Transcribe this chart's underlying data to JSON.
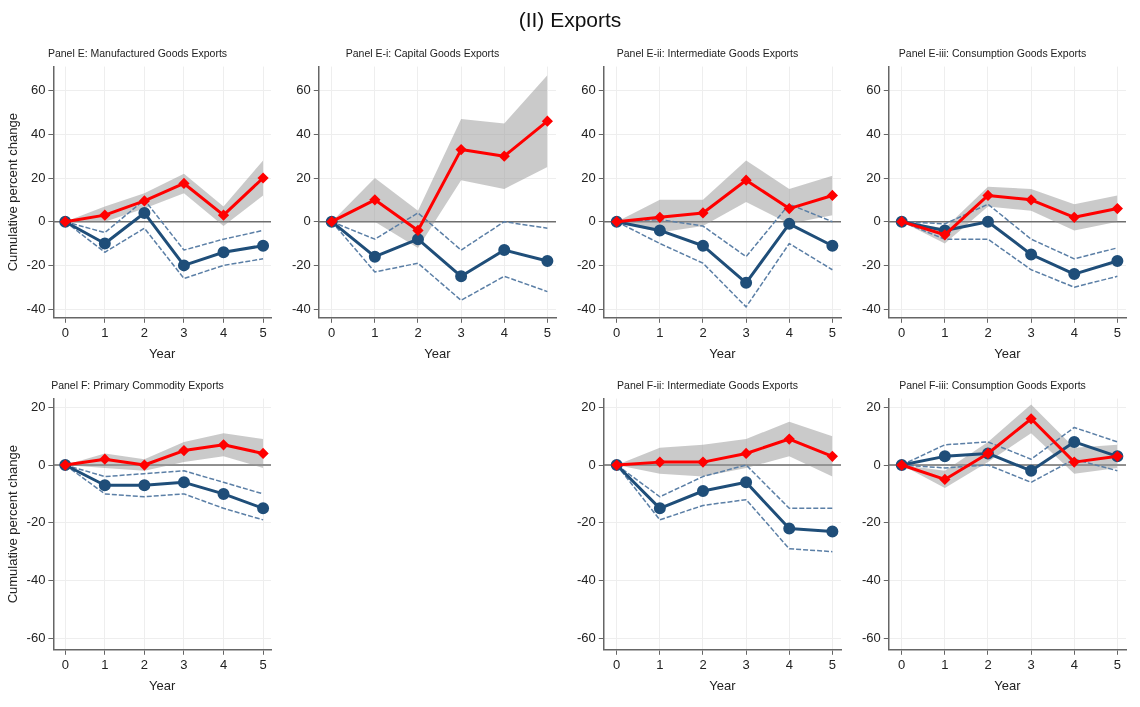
{
  "chart_data": [
    {
      "type": "line",
      "title": "Panel E: Manufactured Goods Exports",
      "annotations": [
        "(II) Exports"
      ],
      "xlabel": "Year",
      "ylabel": "Cumulative percent change",
      "x": [
        0,
        1,
        2,
        3,
        4,
        5
      ],
      "xlim": [
        -0.3,
        5.2
      ],
      "xticks": [
        0,
        1,
        2,
        3,
        4,
        5
      ],
      "ylim": [
        -44,
        71
      ],
      "yticks": [
        -40,
        -20,
        0,
        20,
        40,
        60
      ],
      "grid": true,
      "ref_lines": [
        {
          "axis": "y",
          "value": 0,
          "color": "#6e6e6e"
        }
      ],
      "series": [
        {
          "color": "#ff0000",
          "marker": "diamond",
          "line_style": "solid",
          "values": [
            0,
            3,
            9.5,
            17.5,
            3,
            20
          ],
          "lower": [
            0,
            0,
            6,
            13,
            -2,
            12
          ],
          "upper": [
            0,
            7,
            13,
            22,
            7,
            28
          ]
        },
        {
          "color": "#1f4e79",
          "marker": "circle",
          "line_style": "solid",
          "values": [
            0,
            -10,
            4,
            -20,
            -14,
            -11
          ]
        },
        {
          "color": "#5b7fa6",
          "marker": "none",
          "line_style": "dashed",
          "values": [
            0,
            -5,
            10,
            -13,
            -8,
            -4
          ]
        },
        {
          "color": "#5b7fa6",
          "marker": "none",
          "line_style": "dashed",
          "values": [
            0,
            -14,
            -3,
            -26,
            -20,
            -17
          ]
        }
      ]
    },
    {
      "type": "line",
      "title": "Panel E-i: Capital Goods Exports",
      "xlabel": "Year",
      "x": [
        0,
        1,
        2,
        3,
        4,
        5
      ],
      "xlim": [
        -0.3,
        5.2
      ],
      "xticks": [
        0,
        1,
        2,
        3,
        4,
        5
      ],
      "ylim": [
        -44,
        71
      ],
      "yticks": [
        -40,
        -20,
        0,
        20,
        40,
        60
      ],
      "grid": true,
      "ref_lines": [
        {
          "axis": "y",
          "value": 0,
          "color": "#6e6e6e"
        }
      ],
      "series": [
        {
          "color": "#ff0000",
          "marker": "diamond",
          "line_style": "solid",
          "values": [
            0,
            10,
            -4,
            33,
            30,
            46
          ],
          "lower": [
            0,
            0,
            -12,
            19,
            15,
            25
          ],
          "upper": [
            0,
            20,
            5,
            47,
            45,
            67
          ]
        },
        {
          "color": "#1f4e79",
          "marker": "circle",
          "line_style": "solid",
          "values": [
            0,
            -16,
            -8,
            -25,
            -13,
            -18
          ]
        },
        {
          "color": "#5b7fa6",
          "marker": "none",
          "line_style": "dashed",
          "values": [
            0,
            -8,
            4,
            -13,
            0,
            -3
          ]
        },
        {
          "color": "#5b7fa6",
          "marker": "none",
          "line_style": "dashed",
          "values": [
            0,
            -23,
            -19,
            -36,
            -25,
            -32
          ]
        }
      ]
    },
    {
      "type": "line",
      "title": "Panel E-ii: Intermediate Goods Exports",
      "xlabel": "Year",
      "x": [
        0,
        1,
        2,
        3,
        4,
        5
      ],
      "xlim": [
        -0.3,
        5.2
      ],
      "xticks": [
        0,
        1,
        2,
        3,
        4,
        5
      ],
      "ylim": [
        -44,
        71
      ],
      "yticks": [
        -40,
        -20,
        0,
        20,
        40,
        60
      ],
      "grid": true,
      "ref_lines": [
        {
          "axis": "y",
          "value": 0,
          "color": "#6e6e6e"
        }
      ],
      "series": [
        {
          "color": "#ff0000",
          "marker": "diamond",
          "line_style": "solid",
          "values": [
            0,
            2,
            4,
            19,
            6,
            12
          ],
          "lower": [
            0,
            -5,
            -2,
            9,
            -1,
            3
          ],
          "upper": [
            0,
            10,
            10,
            28,
            15,
            21
          ]
        },
        {
          "color": "#1f4e79",
          "marker": "circle",
          "line_style": "solid",
          "values": [
            0,
            -4,
            -11,
            -28,
            -1,
            -11
          ]
        },
        {
          "color": "#5b7fa6",
          "marker": "none",
          "line_style": "dashed",
          "values": [
            0,
            1,
            -2,
            -16,
            8,
            0
          ]
        },
        {
          "color": "#5b7fa6",
          "marker": "none",
          "line_style": "dashed",
          "values": [
            0,
            -10,
            -19,
            -39,
            -10,
            -22
          ]
        }
      ]
    },
    {
      "type": "line",
      "title": "Panel E-iii: Consumption Goods Exports",
      "xlabel": "Year",
      "x": [
        0,
        1,
        2,
        3,
        4,
        5
      ],
      "xlim": [
        -0.3,
        5.2
      ],
      "xticks": [
        0,
        1,
        2,
        3,
        4,
        5
      ],
      "ylim": [
        -44,
        71
      ],
      "yticks": [
        -40,
        -20,
        0,
        20,
        40,
        60
      ],
      "grid": true,
      "ref_lines": [
        {
          "axis": "y",
          "value": 0,
          "color": "#6e6e6e"
        }
      ],
      "series": [
        {
          "color": "#ff0000",
          "marker": "diamond",
          "line_style": "solid",
          "values": [
            0,
            -6,
            12,
            10,
            2,
            6
          ],
          "lower": [
            0,
            -10,
            7,
            5,
            -4,
            0
          ],
          "upper": [
            0,
            -3,
            16,
            15,
            8,
            12
          ]
        },
        {
          "color": "#1f4e79",
          "marker": "circle",
          "line_style": "solid",
          "values": [
            0,
            -4,
            0,
            -15,
            -24,
            -18
          ]
        },
        {
          "color": "#5b7fa6",
          "marker": "none",
          "line_style": "dashed",
          "values": [
            0,
            -1,
            8,
            -8,
            -17,
            -12
          ]
        },
        {
          "color": "#5b7fa6",
          "marker": "none",
          "line_style": "dashed",
          "values": [
            0,
            -8,
            -8,
            -22,
            -30,
            -25
          ]
        }
      ]
    },
    {
      "type": "line",
      "title": "Panel F: Primary Commodity Exports",
      "xlabel": "Year",
      "ylabel": "Cumulative percent change",
      "x": [
        0,
        1,
        2,
        3,
        4,
        5
      ],
      "xlim": [
        -0.3,
        5.2
      ],
      "xticks": [
        0,
        1,
        2,
        3,
        4,
        5
      ],
      "ylim": [
        -64,
        23
      ],
      "yticks": [
        -60,
        -40,
        -20,
        0,
        20
      ],
      "grid": true,
      "ref_lines": [
        {
          "axis": "y",
          "value": 0,
          "color": "#6e6e6e"
        }
      ],
      "series": [
        {
          "color": "#ff0000",
          "marker": "diamond",
          "line_style": "solid",
          "values": [
            0,
            2,
            0,
            5,
            7,
            4
          ],
          "lower": [
            0,
            -1,
            -2,
            1,
            3,
            -1
          ],
          "upper": [
            0,
            4,
            2,
            8,
            11,
            9
          ]
        },
        {
          "color": "#1f4e79",
          "marker": "circle",
          "line_style": "solid",
          "values": [
            0,
            -7,
            -7,
            -6,
            -10,
            -15
          ]
        },
        {
          "color": "#5b7fa6",
          "marker": "none",
          "line_style": "dashed",
          "values": [
            0,
            -4,
            -3,
            -2,
            -6,
            -10
          ]
        },
        {
          "color": "#5b7fa6",
          "marker": "none",
          "line_style": "dashed",
          "values": [
            0,
            -10,
            -11,
            -10,
            -15,
            -19
          ]
        }
      ]
    },
    {
      "type": "line",
      "title": "Panel F-ii: Intermediate Goods Exports",
      "xlabel": "Year",
      "x": [
        0,
        1,
        2,
        3,
        4,
        5
      ],
      "xlim": [
        -0.3,
        5.2
      ],
      "xticks": [
        0,
        1,
        2,
        3,
        4,
        5
      ],
      "ylim": [
        -64,
        23
      ],
      "yticks": [
        -60,
        -40,
        -20,
        0,
        20
      ],
      "grid": true,
      "ref_lines": [
        {
          "axis": "y",
          "value": 0,
          "color": "#6e6e6e"
        }
      ],
      "series": [
        {
          "color": "#ff0000",
          "marker": "diamond",
          "line_style": "solid",
          "values": [
            0,
            1,
            1,
            4,
            9,
            3
          ],
          "lower": [
            0,
            -3,
            -4,
            -1,
            3,
            -4
          ],
          "upper": [
            0,
            6,
            7,
            9,
            15,
            10
          ]
        },
        {
          "color": "#1f4e79",
          "marker": "circle",
          "line_style": "solid",
          "values": [
            0,
            -15,
            -9,
            -6,
            -22,
            -23
          ]
        },
        {
          "color": "#5b7fa6",
          "marker": "none",
          "line_style": "dashed",
          "values": [
            0,
            -11,
            -4,
            0,
            -15,
            -15
          ]
        },
        {
          "color": "#5b7fa6",
          "marker": "none",
          "line_style": "dashed",
          "values": [
            0,
            -19,
            -14,
            -12,
            -29,
            -30
          ]
        }
      ]
    },
    {
      "type": "line",
      "title": "Panel F-iii: Consumption Goods Exports",
      "xlabel": "Year",
      "x": [
        0,
        1,
        2,
        3,
        4,
        5
      ],
      "xlim": [
        -0.3,
        5.2
      ],
      "xticks": [
        0,
        1,
        2,
        3,
        4,
        5
      ],
      "ylim": [
        -64,
        23
      ],
      "yticks": [
        -60,
        -40,
        -20,
        0,
        20
      ],
      "grid": true,
      "ref_lines": [
        {
          "axis": "y",
          "value": 0,
          "color": "#6e6e6e"
        }
      ],
      "series": [
        {
          "color": "#ff0000",
          "marker": "diamond",
          "line_style": "solid",
          "values": [
            0,
            -5,
            4,
            16,
            1,
            3
          ],
          "lower": [
            0,
            -8,
            1,
            11,
            -3,
            -1
          ],
          "upper": [
            0,
            -2,
            8,
            21,
            6,
            7
          ]
        },
        {
          "color": "#1f4e79",
          "marker": "circle",
          "line_style": "solid",
          "values": [
            0,
            3,
            4,
            -2,
            8,
            3
          ]
        },
        {
          "color": "#5b7fa6",
          "marker": "none",
          "line_style": "dashed",
          "values": [
            0,
            7,
            8,
            2,
            13,
            8
          ]
        },
        {
          "color": "#5b7fa6",
          "marker": "none",
          "line_style": "dashed",
          "values": [
            0,
            -1,
            0,
            -6,
            2,
            -2
          ]
        }
      ]
    }
  ]
}
